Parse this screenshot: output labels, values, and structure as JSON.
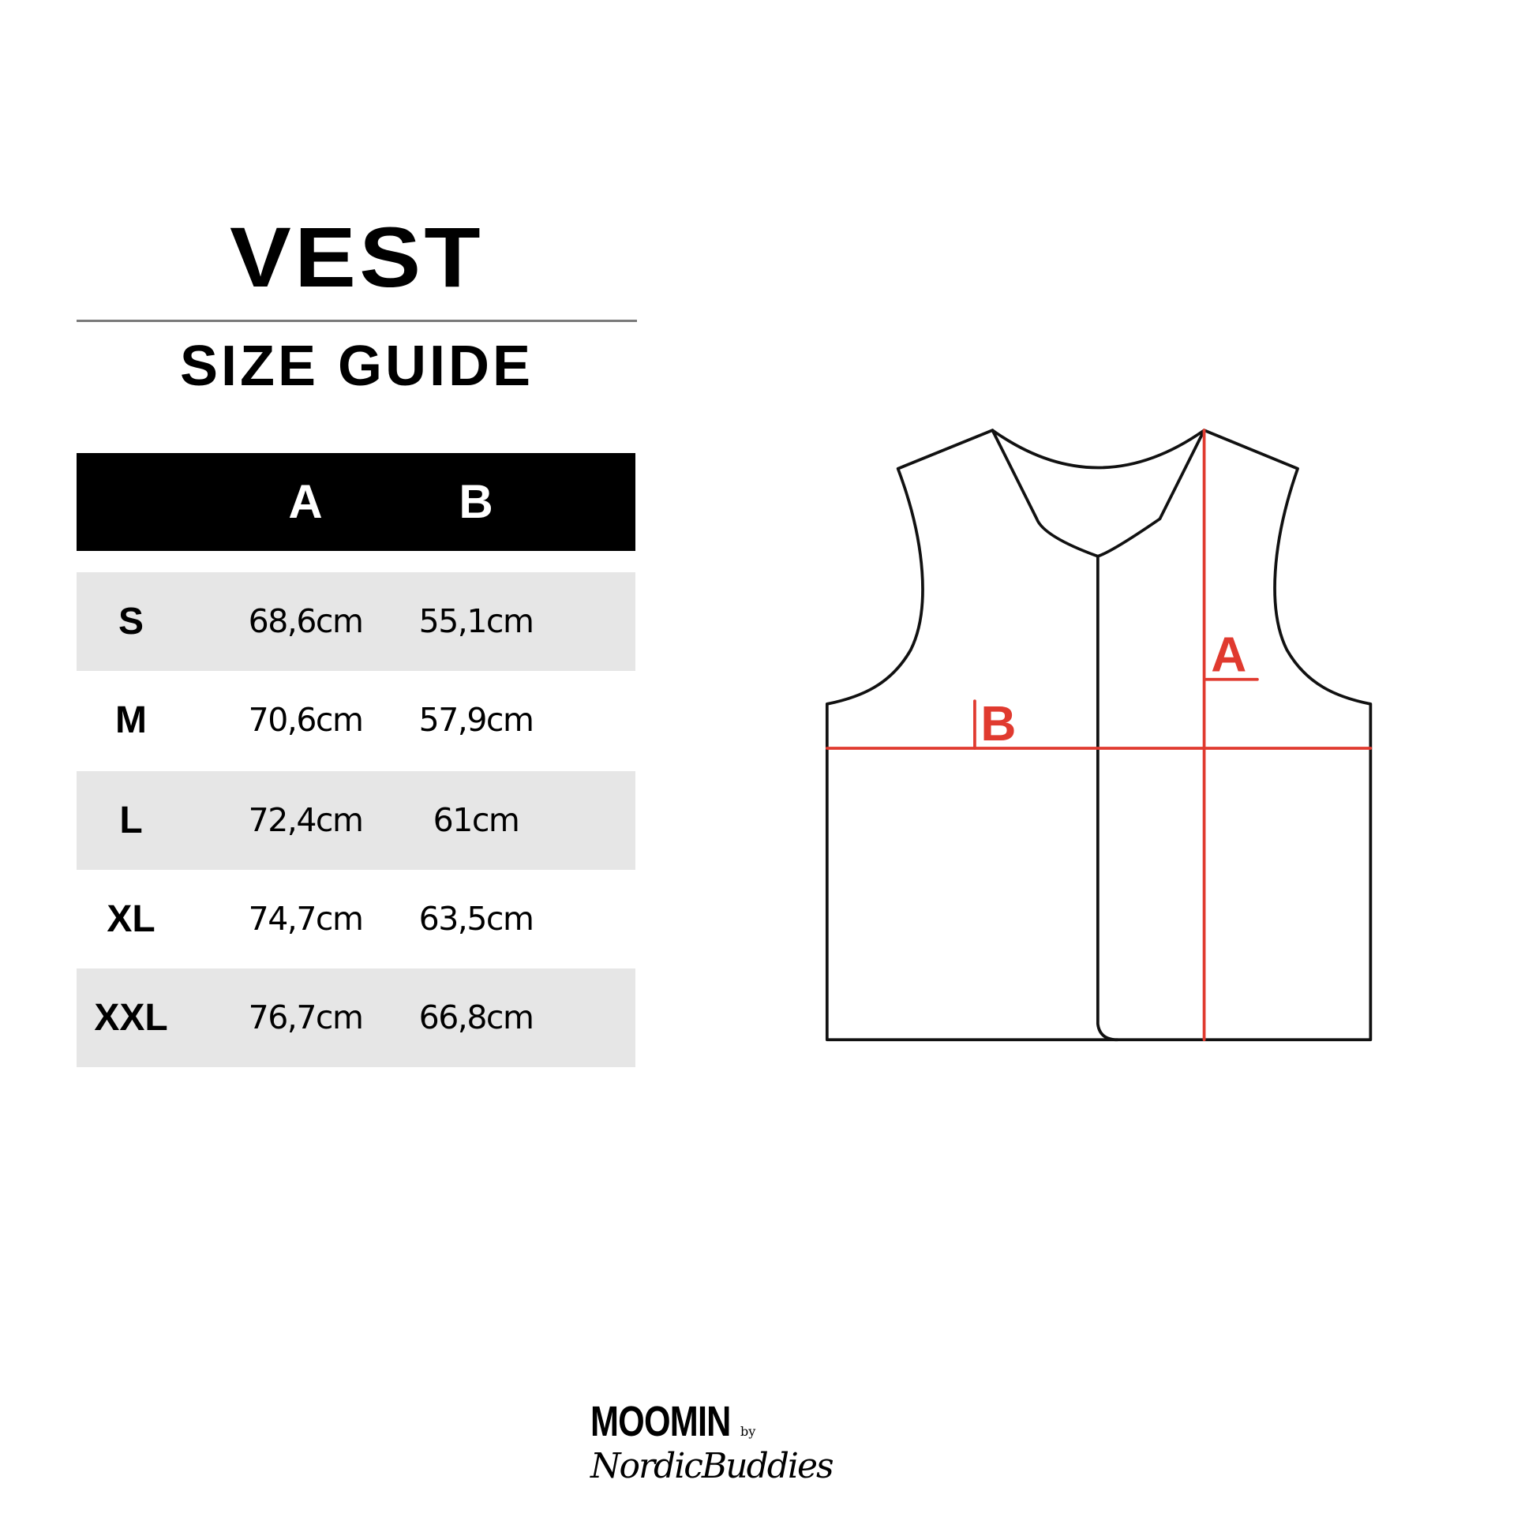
{
  "title": "VEST",
  "subtitle": "SIZE GUIDE",
  "table": {
    "headers": [
      "",
      "A",
      "B"
    ],
    "rows": [
      {
        "size": "S",
        "a": "68,6cm",
        "b": "55,1cm"
      },
      {
        "size": "M",
        "a": "70,6cm",
        "b": "57,9cm"
      },
      {
        "size": "L",
        "a": "72,4cm",
        "b": "61cm"
      },
      {
        "size": "XL",
        "a": "74,7cm",
        "b": "63,5cm"
      },
      {
        "size": "XXL",
        "a": "76,7cm",
        "b": "66,8cm"
      }
    ]
  },
  "diagram": {
    "label_a": "A",
    "label_b": "B",
    "outline_color": "#111111",
    "measure_color": "#e03a2f"
  },
  "logo": {
    "brand": "MOOMIN",
    "by": "by",
    "partner": "NordicBuddies"
  },
  "colors": {
    "header_bg": "#000000",
    "row_shade": "#e6e6e6",
    "rule": "#7a7a7a"
  }
}
